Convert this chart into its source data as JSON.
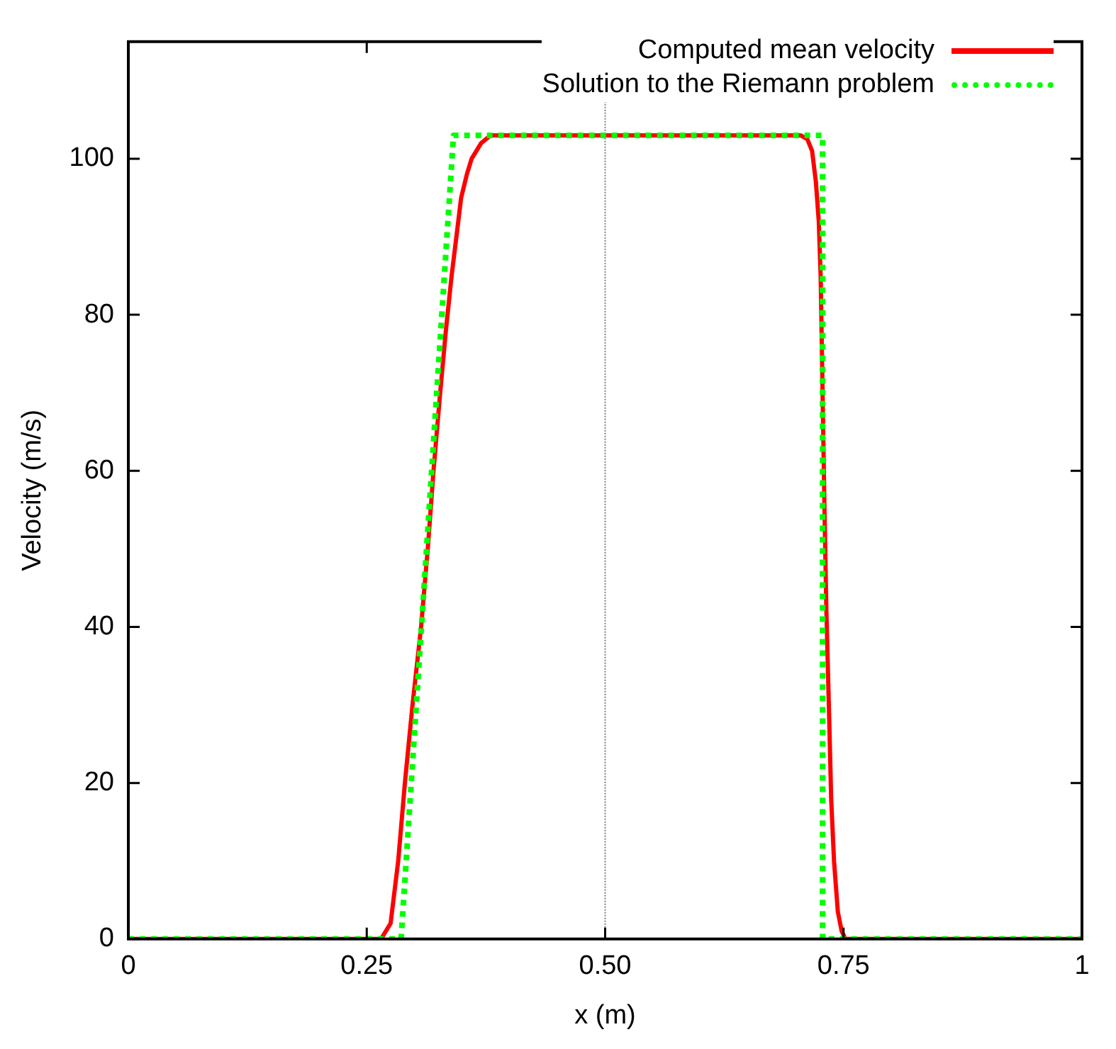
{
  "chart_data": {
    "type": "line",
    "xlabel": "x (m)",
    "ylabel": "Velocity (m/s)",
    "xlim": [
      0,
      1
    ],
    "ylim": [
      0,
      115
    ],
    "xticks": [
      0,
      0.25,
      {
        "value": 0.5,
        "label": "0.50"
      },
      0.75,
      1
    ],
    "yticks": [
      0,
      20,
      40,
      60,
      80,
      100
    ],
    "legend": "top right",
    "marker": "none",
    "ref_lines": [
      {
        "axis": "x",
        "value": 0.5,
        "color": "#808080",
        "line_style": "dotted"
      }
    ],
    "series": [
      {
        "name": "Computed mean velocity",
        "color": "#ff0000",
        "line_style": "solid",
        "x": [
          0,
          0.265,
          0.275,
          0.283,
          0.29,
          0.298,
          0.307,
          0.314,
          0.32,
          0.327,
          0.333,
          0.339,
          0.344,
          0.349,
          0.355,
          0.36,
          0.37,
          0.38,
          0.705,
          0.712,
          0.717,
          0.721,
          0.724,
          0.726,
          0.728,
          0.73,
          0.732,
          0.735,
          0.737,
          0.74,
          0.744,
          0.748,
          0.752,
          1
        ],
        "values": [
          0,
          0,
          2,
          10,
          20,
          30,
          40,
          50,
          60,
          70,
          78,
          85,
          90,
          95,
          98,
          100,
          102,
          103,
          103,
          102.5,
          101,
          97,
          92,
          85,
          70,
          55,
          42,
          28,
          18,
          10,
          3.5,
          1,
          0,
          0
        ]
      },
      {
        "name": "Solution to the Riemann problem",
        "color": "#00ff00",
        "line_style": "dotted",
        "x": [
          0,
          0.286,
          0.341,
          0.728,
          0.728,
          1
        ],
        "values": [
          0,
          0,
          103,
          103,
          0,
          0
        ]
      }
    ]
  }
}
